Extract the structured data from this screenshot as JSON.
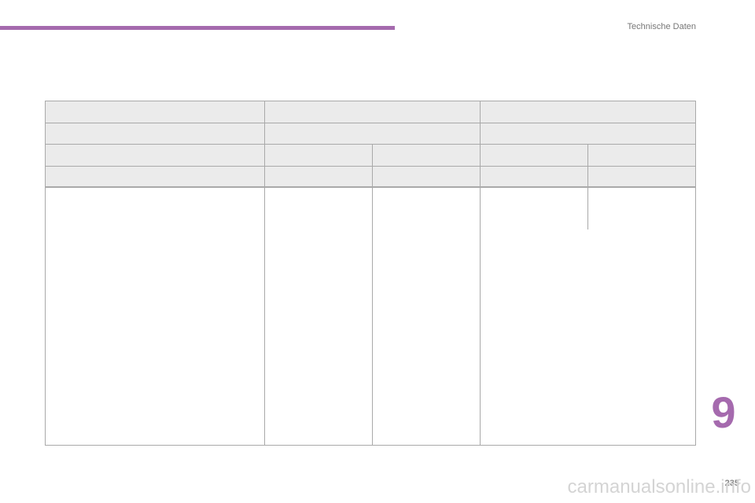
{
  "header": {
    "title": "Technische Daten"
  },
  "chapter": "9",
  "page_number": "235",
  "watermark": "carmanualsonline.info"
}
